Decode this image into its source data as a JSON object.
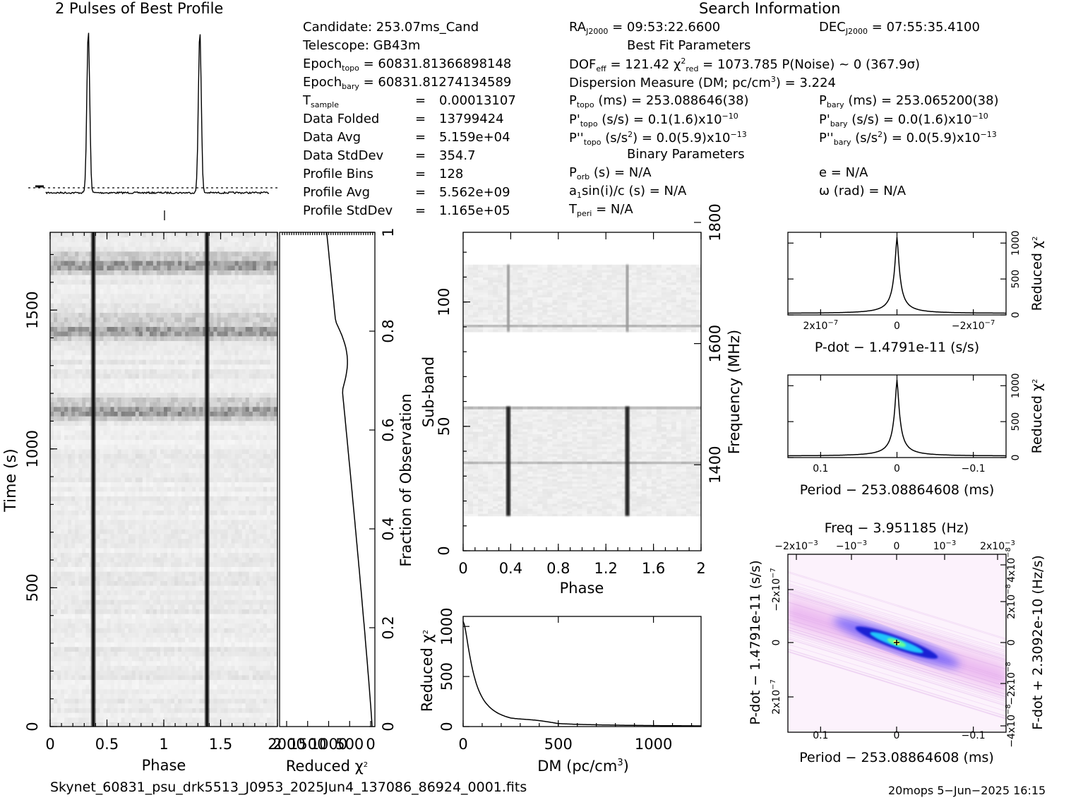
{
  "header": {
    "profile_title": "2 Pulses of Best Profile",
    "search_title": "Search Information",
    "best_fit_title": "Best Fit Parameters",
    "binary_title": "Binary Parameters",
    "dm_label": "Dispersion Measure (DM; pc/cm",
    "dm_tail": ") = 3.224"
  },
  "info_left": {
    "candidate": "Candidate:  253.07ms_Cand",
    "telescope": "Telescope:  GB43m",
    "epoch_topo_l": "Epoch",
    "epoch_topo_s": "topo",
    "epoch_topo_v": " = 60831.81366898148",
    "epoch_bary_l": "Epoch",
    "epoch_bary_s": "bary",
    "epoch_bary_v": " = 60831.81274134589",
    "rows": [
      {
        "label": "T",
        "sub": "sample",
        "eq": "=",
        "val": "0.00013107"
      },
      {
        "label": "Data Folded",
        "sub": "",
        "eq": "=",
        "val": "13799424"
      },
      {
        "label": "Data Avg",
        "sub": "",
        "eq": "=",
        "val": "5.159e+04"
      },
      {
        "label": "Data StdDev",
        "sub": "",
        "eq": "=",
        "val": "354.7"
      },
      {
        "label": "Profile Bins",
        "sub": "",
        "eq": "=",
        "val": "128"
      },
      {
        "label": "Profile Avg",
        "sub": "",
        "eq": "=",
        "val": "5.562e+09"
      },
      {
        "label": "Profile StdDev",
        "sub": "",
        "eq": "=",
        "val": "1.165e+05"
      }
    ]
  },
  "info_mid": {
    "ra": "RA",
    "ra_sub": "J2000",
    "ra_val": " = 09:53:22.6600",
    "dec": "DEC",
    "dec_sub": "J2000",
    "dec_val": " = 07:55:35.4100",
    "dof": "DOF",
    "dof_sub": "eff",
    "dof_val": " = 121.42  ",
    "chi": "χ",
    "chi_sup": "2",
    "chi_sub": "red",
    "chi_val": " = 1073.785   P(Noise) ~ 0    (367.9σ)",
    "ptopo": "P",
    "ptopo_sub": "topo",
    "ptopo_val": " (ms) =  253.088646(38)",
    "pbary": "P",
    "pbary_sub": "bary",
    "pbary_val": " (ms) =  253.065200(38)",
    "pdtopo": "P'",
    "pdtopo_sub": "topo",
    "pdtopo_val": " (s/s) =  0.1(1.6)x10",
    "pdtopo_exp": "−10",
    "pdbary": "P'",
    "pdbary_sub": "bary",
    "pdbary_val": " (s/s) = 0.0(1.6)x10",
    "pdbary_exp": "−10",
    "pddtopo": "P''",
    "pddtopo_sub": "topo",
    "pddtopo_val": " (s/s",
    "pddtopo_val2": ") = 0.0(5.9)x10",
    "pddtopo_exp": "−13",
    "pddbary": "P''",
    "pddbary_sub": "bary",
    "pddbary_val": " (s/s",
    "pddbary_val2": ") = 0.0(5.9)x10",
    "pddbary_exp": "−13",
    "porb": "P",
    "porb_sub": "orb",
    "porb_val": " (s) = N/A",
    "asini": "a",
    "asini_sub": "1",
    "asini_val": "sin(i)/c (s) = N/A",
    "tperi": "T",
    "tperi_sub": "peri",
    "tperi_val": " = N/A",
    "ecc": "e = N/A",
    "omega": "ω (rad) = N/A"
  },
  "footer": {
    "filename": "Skynet_60831_psu_drk5513_J0953_2025Jun4_137086_86924_0001.fits",
    "stamp": "20mops  5−Jun−2025 16:15"
  },
  "chart_data": [
    {
      "type": "line",
      "name": "profile",
      "title": "2 Pulses of Best Profile",
      "x_range": [
        0,
        2
      ],
      "peaks_at_phase": [
        0.38,
        1.38
      ]
    },
    {
      "type": "heatmap",
      "name": "time-phase",
      "xlabel": "Phase",
      "ylabel": "Time (s)",
      "xticks": [
        "0",
        "0.5",
        "1",
        "1.5",
        "2"
      ],
      "yticks": [
        "0",
        "500",
        "1000",
        "1500"
      ],
      "xlim": [
        0,
        2
      ],
      "ylim": [
        0,
        1780
      ],
      "pulse_phases": [
        0.38,
        1.38
      ],
      "bright_rows_s": [
        1660,
        1420,
        1130
      ]
    },
    {
      "type": "line",
      "name": "chi-vs-time",
      "xlabel": "Reduced χ",
      "xticks": [
        "2000",
        "1500",
        "1000",
        "500",
        "0"
      ],
      "right_label": "Fraction of Observation",
      "right_ticks": [
        "0",
        "0.2",
        "0.4",
        "0.6",
        "0.8",
        "1"
      ]
    },
    {
      "type": "heatmap",
      "name": "subband-phase",
      "xlabel": "Phase",
      "ylabel": "Sub-band",
      "right_label": "Frequency (MHz)",
      "xticks": [
        "0",
        "0.4",
        "0.8",
        "1.2",
        "1.6",
        "2"
      ],
      "yticks": [
        "0",
        "50",
        "100"
      ],
      "right_ticks": [
        "1400",
        "1600",
        "1800"
      ],
      "xlim": [
        0,
        2
      ],
      "ylim": [
        0,
        128
      ],
      "pulse_phases": [
        0.38,
        1.38
      ],
      "empty_band": [
        58,
        88
      ]
    },
    {
      "type": "line",
      "name": "dm-chi",
      "xlabel": "DM (pc/cm",
      "ylabel": "Reduced χ",
      "xticks": [
        "0",
        "500",
        "1000"
      ],
      "yticks": [
        "0",
        "500",
        "1000"
      ],
      "xlim": [
        0,
        1250
      ],
      "ylim": [
        0,
        1100
      ]
    },
    {
      "type": "line",
      "name": "pdot-chi",
      "xlabel": "P-dot − 1.4791e-11 (s/s)",
      "ylabel": "Reduced χ",
      "xticks": [
        "2x10",
        "0",
        "−2x10"
      ],
      "xtick_exp": "−7",
      "yticks": [
        "0",
        "500",
        "1000"
      ],
      "ylim": [
        0,
        1150
      ]
    },
    {
      "type": "line",
      "name": "period-chi",
      "xlabel": "Period − 253.08864608 (ms)",
      "ylabel": "Reduced χ",
      "xticks": [
        "0.1",
        "0",
        "−0.1"
      ],
      "yticks": [
        "0",
        "500",
        "1000"
      ],
      "ylim": [
        0,
        1150
      ]
    },
    {
      "type": "heatmap",
      "name": "period-pdot",
      "title": "Freq − 3.951185 (Hz)",
      "xlabel": "Period − 253.08864608 (ms)",
      "ylabel": "P-dot − 1.4791e-11 (s/s)",
      "right_label": "F-dot + 2.3092e-10 (Hz/s)",
      "xticks": [
        "0.1",
        "0",
        "−0.1"
      ],
      "top_ticks": [
        "−2x10",
        "−10",
        "0",
        "10",
        "2x10"
      ],
      "top_exp": "−3",
      "yticks": [
        "2x10",
        "0",
        "−2x10"
      ],
      "ytick_exp": "−7",
      "right_ticks": [
        "−4x10",
        "−2x10",
        "0",
        "2x10",
        "4x10"
      ],
      "right_exp": "−8"
    }
  ]
}
